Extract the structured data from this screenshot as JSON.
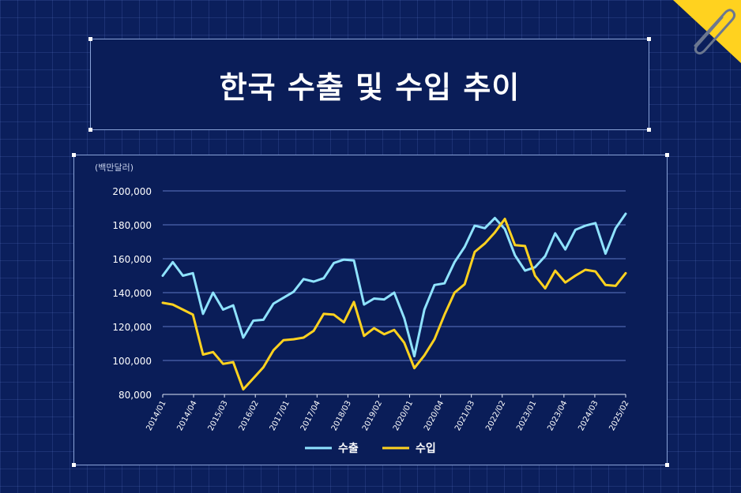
{
  "title": "한국 수출 및 수입 추이",
  "colors": {
    "export": "#8fe3ff",
    "import": "#ffd21f",
    "accent": "#ffd21f"
  },
  "decoration": {
    "corner_icon": "paperclip-icon"
  },
  "chart_data": {
    "type": "line",
    "title": "한국 수출 및 수입 추이",
    "unit_label": "(백만달러)",
    "ylim": [
      80000,
      200000
    ],
    "yticks": [
      "200,000",
      "180,000",
      "160,000",
      "140,000",
      "120,000",
      "100,000",
      "80,000"
    ],
    "ytick_values": [
      200000,
      180000,
      160000,
      140000,
      120000,
      100000,
      80000
    ],
    "xtick_labels": [
      "2014/01",
      "2014/04",
      "2015/03",
      "2016/02",
      "2017/01",
      "2017/04",
      "2018/03",
      "2019/02",
      "2020/01",
      "2020/04",
      "2021/03",
      "2022/02",
      "2023/01",
      "2023/04",
      "2024/03",
      "2025/02"
    ],
    "legend": [
      "수출",
      "수입"
    ],
    "series": [
      {
        "name": "수출",
        "values": [
          150000,
          158000,
          150000,
          151500,
          127500,
          140000,
          130000,
          132500,
          113500,
          123500,
          124000,
          133500,
          137000,
          140500,
          148000,
          146500,
          148500,
          157500,
          159500,
          159000,
          133000,
          136500,
          136000,
          140000,
          125000,
          102500,
          130000,
          144500,
          145500,
          158000,
          167000,
          179500,
          178000,
          184000,
          177500,
          162000,
          153000,
          155000,
          161500,
          175000,
          165500,
          177000,
          179500,
          181000,
          163000,
          178000,
          186500
        ]
      },
      {
        "name": "수입",
        "values": [
          134000,
          133000,
          130000,
          127000,
          103500,
          105000,
          98000,
          99000,
          83000,
          89500,
          96000,
          106000,
          112000,
          112500,
          113500,
          117500,
          127500,
          127000,
          122500,
          134500,
          114500,
          119000,
          115500,
          118000,
          110500,
          95500,
          103000,
          112500,
          127000,
          140000,
          145000,
          164000,
          169000,
          175500,
          183500,
          168000,
          167500,
          150000,
          142500,
          153000,
          146000,
          150000,
          153500,
          152500,
          144500,
          144000,
          151500
        ]
      }
    ]
  }
}
